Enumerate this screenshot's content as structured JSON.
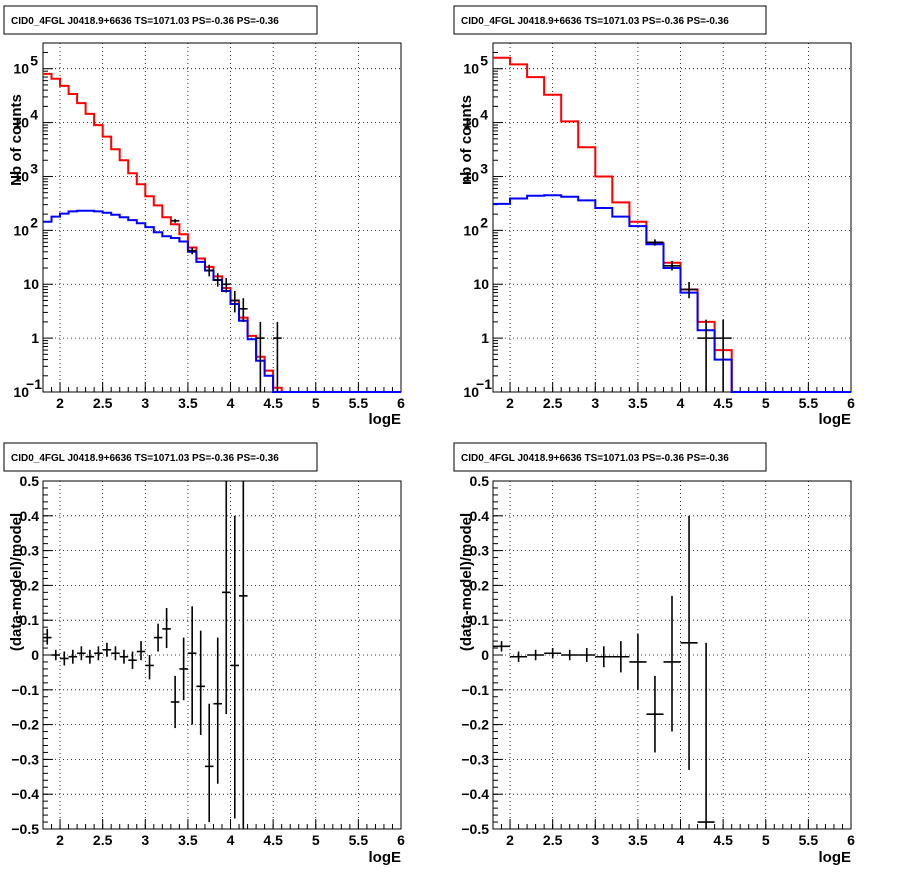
{
  "colors": {
    "data": "#000000",
    "total_model": "#ff0000",
    "component_model": "#0000ff",
    "grid": "#000000"
  },
  "chart_data": [
    {
      "type": "histogram",
      "title": "CID0_4FGL J0418.9+6636 TS=1071.03 PS=-0.36 PS=-0.36",
      "xlabel": "logE",
      "ylabel": "Nb of counts",
      "xlim": [
        1.8,
        6.0
      ],
      "ylim": [
        0.1,
        300000
      ],
      "yscale": "log",
      "grid": true,
      "x_ticks": [
        "2",
        "2.5",
        "3",
        "3.5",
        "4",
        "4.5",
        "5",
        "5.5",
        "6"
      ],
      "y_ticks": [
        {
          "v": 0.1,
          "label": "10",
          "exp": "−1"
        },
        {
          "v": 1,
          "label": "1",
          "exp": ""
        },
        {
          "v": 10,
          "label": "10",
          "exp": ""
        },
        {
          "v": 100,
          "label": "10",
          "exp": "2"
        },
        {
          "v": 1000,
          "label": "10",
          "exp": "3"
        },
        {
          "v": 10000,
          "label": "10",
          "exp": "4"
        },
        {
          "v": 100000,
          "label": "10",
          "exp": "5"
        }
      ],
      "bin_width": 0.1,
      "series": [
        {
          "key": "total_model",
          "x_start": [
            1.8,
            1.9,
            2.0,
            2.1,
            2.2,
            2.3,
            2.4,
            2.5,
            2.6,
            2.7,
            2.8,
            2.9,
            3.0,
            3.1,
            3.2,
            3.3,
            3.4,
            3.5,
            3.6,
            3.7,
            3.8,
            3.9,
            4.0,
            4.1,
            4.2,
            4.3,
            4.4,
            4.5,
            4.6,
            4.7,
            4.8,
            4.9,
            5.0,
            5.1,
            5.2,
            5.3,
            5.4,
            5.5,
            5.6,
            5.7,
            5.8,
            5.9
          ],
          "values": [
            80000,
            65000,
            48000,
            34000,
            23000,
            14500,
            9000,
            5500,
            3200,
            2000,
            1150,
            720,
            430,
            290,
            175,
            130,
            85,
            48,
            30,
            21,
            14,
            8.5,
            5,
            2.4,
            1.1,
            0.45,
            0.25,
            0.12,
            0.1,
            0.1,
            0.1,
            0.1,
            0.1,
            0.1,
            0.1,
            0.1,
            0.1,
            0.1,
            0.1,
            0.1,
            0.1,
            0.1
          ]
        },
        {
          "key": "component_model",
          "x_start": [
            1.8,
            1.9,
            2.0,
            2.1,
            2.2,
            2.3,
            2.4,
            2.5,
            2.6,
            2.7,
            2.8,
            2.9,
            3.0,
            3.1,
            3.2,
            3.3,
            3.4,
            3.5,
            3.6,
            3.7,
            3.8,
            3.9,
            4.0,
            4.1,
            4.2,
            4.3,
            4.4,
            4.5,
            4.6,
            4.7,
            4.8,
            4.9,
            5.0,
            5.1,
            5.2,
            5.3,
            5.4,
            5.5,
            5.6,
            5.7,
            5.8,
            5.9
          ],
          "values": [
            145,
            180,
            205,
            225,
            232,
            232,
            225,
            212,
            195,
            175,
            155,
            135,
            115,
            92,
            78,
            72,
            62,
            40,
            26,
            18,
            12,
            7.5,
            4.3,
            2.1,
            0.95,
            0.38,
            0.2,
            0.1,
            0.1,
            0.1,
            0.1,
            0.1,
            0.1,
            0.1,
            0.1,
            0.1,
            0.1,
            0.1,
            0.1,
            0.1,
            0.1,
            0.1
          ]
        }
      ],
      "data_points": [
        {
          "x": 3.35,
          "y": 150,
          "ylo": 138,
          "yhi": 162
        },
        {
          "x": 3.55,
          "y": 42,
          "ylo": 36,
          "yhi": 48
        },
        {
          "x": 3.75,
          "y": 18,
          "ylo": 14,
          "yhi": 23
        },
        {
          "x": 3.85,
          "y": 12,
          "ylo": 9,
          "yhi": 16
        },
        {
          "x": 3.95,
          "y": 10,
          "ylo": 7,
          "yhi": 13
        },
        {
          "x": 4.05,
          "y": 5,
          "ylo": 3,
          "yhi": 7.5
        },
        {
          "x": 4.15,
          "y": 3.5,
          "ylo": 2,
          "yhi": 5.5
        },
        {
          "x": 4.35,
          "y": 1,
          "ylo": 0.1,
          "yhi": 2
        },
        {
          "x": 4.55,
          "y": 1,
          "ylo": 0.1,
          "yhi": 2
        }
      ]
    },
    {
      "type": "histogram",
      "title": "CID0_4FGL J0418.9+6636 TS=1071.03 PS=-0.36 PS=-0.36",
      "xlabel": "logE",
      "ylabel": "nb of counts",
      "xlim": [
        1.8,
        6.0
      ],
      "ylim": [
        0.1,
        300000
      ],
      "yscale": "log",
      "grid": true,
      "x_ticks": [
        "2",
        "2.5",
        "3",
        "3.5",
        "4",
        "4.5",
        "5",
        "5.5",
        "6"
      ],
      "y_ticks": [
        {
          "v": 0.1,
          "label": "10",
          "exp": "−1"
        },
        {
          "v": 1,
          "label": "1",
          "exp": ""
        },
        {
          "v": 10,
          "label": "10",
          "exp": ""
        },
        {
          "v": 100,
          "label": "10",
          "exp": "2"
        },
        {
          "v": 1000,
          "label": "10",
          "exp": "3"
        },
        {
          "v": 10000,
          "label": "10",
          "exp": "4"
        },
        {
          "v": 100000,
          "label": "10",
          "exp": "5"
        }
      ],
      "bin_width": 0.2,
      "series": [
        {
          "key": "total_model",
          "x_start": [
            1.8,
            2.0,
            2.2,
            2.4,
            2.6,
            2.8,
            3.0,
            3.2,
            3.4,
            3.6,
            3.8,
            4.0,
            4.2,
            4.4,
            4.6,
            4.8,
            5.0,
            5.2,
            5.4,
            5.6,
            5.8
          ],
          "values": [
            160000,
            120000,
            70000,
            33000,
            10500,
            3500,
            1000,
            330,
            145,
            58,
            25,
            8,
            2,
            0.6,
            0.1,
            0.1,
            0.1,
            0.1,
            0.1,
            0.1,
            0.1
          ]
        },
        {
          "key": "component_model",
          "x_start": [
            1.8,
            2.0,
            2.2,
            2.4,
            2.6,
            2.8,
            3.0,
            3.2,
            3.4,
            3.6,
            3.8,
            4.0,
            4.2,
            4.4,
            4.6,
            4.8,
            5.0,
            5.2,
            5.4,
            5.6,
            5.8
          ],
          "values": [
            310,
            390,
            440,
            450,
            420,
            360,
            260,
            180,
            120,
            55,
            20,
            7,
            1.4,
            0.4,
            0.1,
            0.1,
            0.1,
            0.1,
            0.1,
            0.1,
            0.1
          ]
        }
      ],
      "data_points": [
        {
          "x": 3.7,
          "y": 60,
          "ylo": 52,
          "yhi": 68
        },
        {
          "x": 3.9,
          "y": 22,
          "ylo": 18,
          "yhi": 27
        },
        {
          "x": 4.1,
          "y": 8,
          "ylo": 5.5,
          "yhi": 11
        },
        {
          "x": 4.3,
          "y": 1,
          "ylo": 0.1,
          "yhi": 2.2
        },
        {
          "x": 4.5,
          "y": 1,
          "ylo": 0.1,
          "yhi": 2.2
        }
      ]
    },
    {
      "type": "scatter",
      "title": "CID0_4FGL J0418.9+6636 TS=1071.03 PS=-0.36 PS=-0.36",
      "xlabel": "logE",
      "ylabel": "(data-model)/model",
      "xlim": [
        1.8,
        6.0
      ],
      "ylim": [
        -0.5,
        0.5
      ],
      "grid": true,
      "x_ticks": [
        "2",
        "2.5",
        "3",
        "3.5",
        "4",
        "4.5",
        "5",
        "5.5",
        "6"
      ],
      "y_ticks": [
        "−0.5",
        "−0.4",
        "−0.3",
        "−0.2",
        "−0.1",
        "0",
        "0.1",
        "0.2",
        "0.3",
        "0.4",
        "0.5"
      ],
      "bin_width": 0.1,
      "data_points": [
        {
          "x": 1.85,
          "y": 0.05,
          "ylo": 0.03,
          "yhi": 0.075
        },
        {
          "x": 1.95,
          "y": 0.0,
          "ylo": -0.015,
          "yhi": 0.015
        },
        {
          "x": 2.05,
          "y": -0.01,
          "ylo": -0.03,
          "yhi": 0.01
        },
        {
          "x": 2.15,
          "y": -0.005,
          "ylo": -0.025,
          "yhi": 0.015
        },
        {
          "x": 2.25,
          "y": 0.005,
          "ylo": -0.015,
          "yhi": 0.025
        },
        {
          "x": 2.35,
          "y": -0.005,
          "ylo": -0.025,
          "yhi": 0.015
        },
        {
          "x": 2.45,
          "y": 0.005,
          "ylo": -0.015,
          "yhi": 0.025
        },
        {
          "x": 2.55,
          "y": 0.015,
          "ylo": -0.005,
          "yhi": 0.035
        },
        {
          "x": 2.65,
          "y": 0.005,
          "ylo": -0.015,
          "yhi": 0.025
        },
        {
          "x": 2.75,
          "y": -0.005,
          "ylo": -0.025,
          "yhi": 0.015
        },
        {
          "x": 2.85,
          "y": -0.015,
          "ylo": -0.04,
          "yhi": 0.01
        },
        {
          "x": 2.95,
          "y": 0.01,
          "ylo": -0.015,
          "yhi": 0.04
        },
        {
          "x": 3.05,
          "y": -0.03,
          "ylo": -0.07,
          "yhi": 0.0
        },
        {
          "x": 3.15,
          "y": 0.05,
          "ylo": 0.01,
          "yhi": 0.09
        },
        {
          "x": 3.25,
          "y": 0.075,
          "ylo": 0.02,
          "yhi": 0.135
        },
        {
          "x": 3.35,
          "y": -0.135,
          "ylo": -0.21,
          "yhi": -0.06
        },
        {
          "x": 3.45,
          "y": -0.04,
          "ylo": -0.13,
          "yhi": 0.05
        },
        {
          "x": 3.55,
          "y": 0.005,
          "ylo": -0.2,
          "yhi": 0.14
        },
        {
          "x": 3.65,
          "y": -0.09,
          "ylo": -0.23,
          "yhi": 0.07
        },
        {
          "x": 3.75,
          "y": -0.32,
          "ylo": -0.48,
          "yhi": -0.14
        },
        {
          "x": 3.85,
          "y": -0.14,
          "ylo": -0.37,
          "yhi": 0.05
        },
        {
          "x": 3.95,
          "y": 0.18,
          "ylo": -0.17,
          "yhi": 0.5
        },
        {
          "x": 4.05,
          "y": -0.03,
          "ylo": -0.47,
          "yhi": 0.4
        },
        {
          "x": 4.15,
          "y": 0.17,
          "ylo": -0.5,
          "yhi": 0.5
        }
      ]
    },
    {
      "type": "scatter",
      "title": "CID0_4FGL J0418.9+6636 TS=1071.03 PS=-0.36 PS=-0.36",
      "xlabel": "logE",
      "ylabel": "(data-model)/model",
      "xlim": [
        1.8,
        6.0
      ],
      "ylim": [
        -0.5,
        0.5
      ],
      "grid": true,
      "x_ticks": [
        "2",
        "2.5",
        "3",
        "3.5",
        "4",
        "4.5",
        "5",
        "5.5",
        "6"
      ],
      "y_ticks": [
        "−0.5",
        "−0.4",
        "−0.3",
        "−0.2",
        "−0.1",
        "0",
        "0.1",
        "0.2",
        "0.3",
        "0.4",
        "0.5"
      ],
      "bin_width": 0.2,
      "data_points": [
        {
          "x": 1.9,
          "y": 0.025,
          "ylo": 0.01,
          "yhi": 0.04
        },
        {
          "x": 2.1,
          "y": -0.005,
          "ylo": -0.02,
          "yhi": 0.01
        },
        {
          "x": 2.3,
          "y": 0.0,
          "ylo": -0.015,
          "yhi": 0.015
        },
        {
          "x": 2.5,
          "y": 0.005,
          "ylo": -0.01,
          "yhi": 0.02
        },
        {
          "x": 2.7,
          "y": 0.0,
          "ylo": -0.015,
          "yhi": 0.015
        },
        {
          "x": 2.9,
          "y": 0.0,
          "ylo": -0.02,
          "yhi": 0.02
        },
        {
          "x": 3.1,
          "y": -0.005,
          "ylo": -0.035,
          "yhi": 0.025
        },
        {
          "x": 3.3,
          "y": -0.005,
          "ylo": -0.05,
          "yhi": 0.04
        },
        {
          "x": 3.5,
          "y": -0.02,
          "ylo": -0.1,
          "yhi": 0.06
        },
        {
          "x": 3.7,
          "y": -0.17,
          "ylo": -0.28,
          "yhi": -0.06
        },
        {
          "x": 3.9,
          "y": -0.02,
          "ylo": -0.22,
          "yhi": 0.17
        },
        {
          "x": 4.1,
          "y": 0.035,
          "ylo": -0.33,
          "yhi": 0.4
        },
        {
          "x": 4.3,
          "y": -0.48,
          "ylo": -0.5,
          "yhi": 0.035
        }
      ]
    }
  ]
}
